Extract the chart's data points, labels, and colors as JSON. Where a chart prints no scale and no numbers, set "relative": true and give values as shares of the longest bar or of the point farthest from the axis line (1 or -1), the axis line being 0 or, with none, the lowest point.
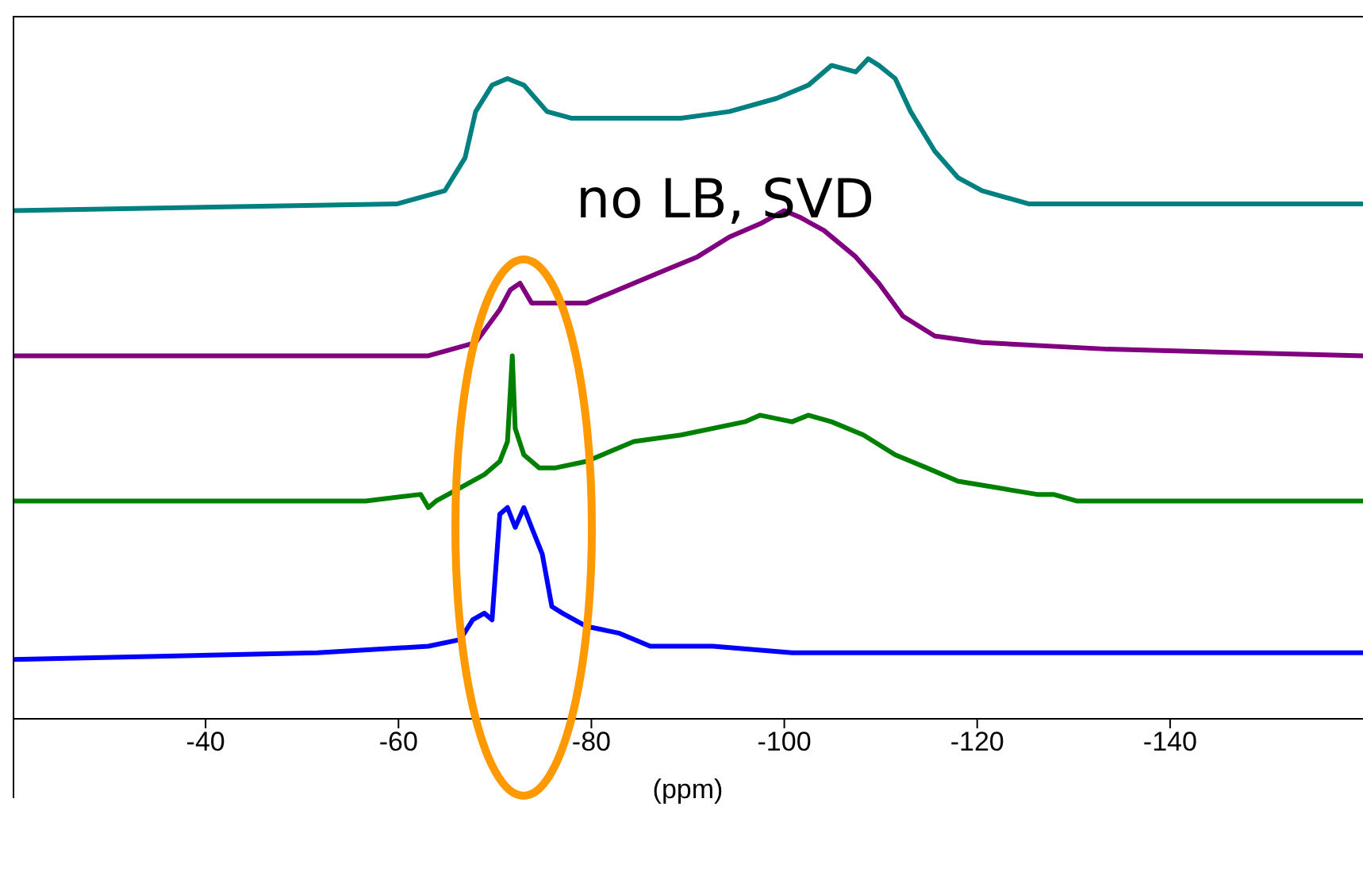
{
  "chart_data": {
    "type": "line",
    "relative": true,
    "xlabel": "(ppm)",
    "xlim": [
      -20,
      -160
    ],
    "xticks": [
      -40,
      -60,
      -80,
      -100,
      -120,
      -140
    ],
    "tick_labels": "x",
    "grid": false,
    "legend": false,
    "marker": "none",
    "line_style": "solid",
    "annotations": [
      "no LB, SVD"
    ],
    "series": [
      {
        "color": "#008080",
        "x": [
          -20,
          -59.8,
          -64.8,
          -66.9,
          -68.0,
          -69.7,
          -71.3,
          -73.0,
          -75.4,
          -77.9,
          -81.1,
          -84.4,
          -89.3,
          -94.3,
          -99.2,
          -102.5,
          -104.9,
          -107.4,
          -108.7,
          -109.8,
          -111.5,
          -113.1,
          -115.6,
          -118.0,
          -120.5,
          -125.4,
          -133.6,
          -160
        ],
        "values": [
          0.77,
          0.78,
          0.8,
          0.85,
          0.92,
          0.96,
          0.97,
          0.96,
          0.92,
          0.91,
          0.91,
          0.91,
          0.91,
          0.92,
          0.94,
          0.96,
          0.99,
          0.98,
          1.0,
          0.99,
          0.97,
          0.92,
          0.86,
          0.82,
          0.8,
          0.78,
          0.78,
          0.78
        ]
      },
      {
        "color": "#800080",
        "x": [
          -20,
          -63.1,
          -68.0,
          -70.5,
          -71.6,
          -72.6,
          -73.8,
          -75.4,
          -77.0,
          -79.5,
          -84.4,
          -87.7,
          -91.0,
          -94.3,
          -97.5,
          -100.0,
          -101.6,
          -104.1,
          -107.4,
          -109.8,
          -112.3,
          -115.6,
          -120.5,
          -133.6,
          -160
        ],
        "values": [
          0.55,
          0.55,
          0.57,
          0.62,
          0.65,
          0.66,
          0.63,
          0.63,
          0.63,
          0.63,
          0.66,
          0.68,
          0.7,
          0.73,
          0.75,
          0.77,
          0.76,
          0.74,
          0.7,
          0.66,
          0.61,
          0.58,
          0.57,
          0.56,
          0.55
        ]
      },
      {
        "color": "#008000",
        "x": [
          -20,
          -56.6,
          -62.3,
          -63.1,
          -63.9,
          -66.4,
          -68.9,
          -70.5,
          -71.3,
          -71.8,
          -72.1,
          -73.0,
          -74.6,
          -76.2,
          -79.5,
          -84.4,
          -89.3,
          -95.9,
          -97.5,
          -100.8,
          -102.5,
          -104.9,
          -108.2,
          -111.5,
          -114.8,
          -118.0,
          -122.1,
          -126.2,
          -127.9,
          -130.3,
          -133.6,
          -160
        ],
        "values": [
          0.33,
          0.33,
          0.34,
          0.32,
          0.33,
          0.35,
          0.37,
          0.39,
          0.42,
          0.55,
          0.44,
          0.4,
          0.38,
          0.38,
          0.39,
          0.42,
          0.43,
          0.45,
          0.46,
          0.45,
          0.46,
          0.45,
          0.43,
          0.4,
          0.38,
          0.36,
          0.35,
          0.34,
          0.34,
          0.33,
          0.33,
          0.33
        ]
      },
      {
        "color": "#0000ff",
        "x": [
          -20,
          -51.6,
          -63.1,
          -66.4,
          -67.7,
          -68.9,
          -69.7,
          -70.5,
          -71.3,
          -72.1,
          -73.0,
          -73.8,
          -74.9,
          -75.9,
          -77.0,
          -79.5,
          -82.8,
          -86.1,
          -92.6,
          -100.8,
          -117.2,
          -160
        ],
        "values": [
          0.09,
          0.1,
          0.11,
          0.12,
          0.15,
          0.16,
          0.15,
          0.31,
          0.32,
          0.29,
          0.32,
          0.29,
          0.25,
          0.17,
          0.16,
          0.14,
          0.13,
          0.11,
          0.11,
          0.1,
          0.1,
          0.1
        ]
      }
    ]
  }
}
